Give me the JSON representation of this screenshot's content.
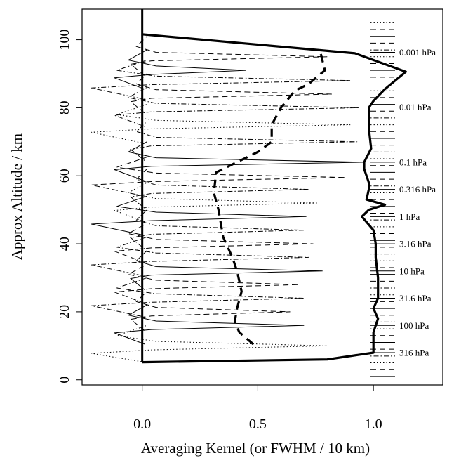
{
  "chart_data": {
    "type": "line",
    "title": "",
    "xlabel": "Averaging Kernel (or FWHM / 10 km)",
    "ylabel": "Approx Altitude / km",
    "xlim": [
      -0.26,
      1.3
    ],
    "ylim": [
      -1.5,
      109
    ],
    "xticks": [
      0.0,
      0.5,
      1.0
    ],
    "xtick_labels": [
      "0.0",
      "0.5",
      "1.0"
    ],
    "yticks": [
      0,
      20,
      40,
      60,
      80,
      100
    ],
    "ytick_labels": [
      "0",
      "20",
      "40",
      "60",
      "80",
      "100"
    ],
    "grid": false,
    "legend_placement": "right",
    "level_labels": [
      {
        "y": 96.3,
        "label": "0.001 hPa"
      },
      {
        "y": 80.2,
        "label": "0.01 hPa"
      },
      {
        "y": 64.0,
        "label": "0.1 hPa"
      },
      {
        "y": 56.0,
        "label": "0.316 hPa"
      },
      {
        "y": 48.0,
        "label": "1 hPa"
      },
      {
        "y": 40.0,
        "label": "3.16 hPa"
      },
      {
        "y": 32.0,
        "label": "10 hPa"
      },
      {
        "y": 24.0,
        "label": "31.6 hPa"
      },
      {
        "y": 16.0,
        "label": "100 hPa"
      },
      {
        "y": 8.0,
        "label": "316 hPa"
      }
    ],
    "series": [
      {
        "style": "solid-thick",
        "points": [
          [
            0.0,
            5.2
          ],
          [
            0.8,
            6.0
          ],
          [
            1.0,
            8.0
          ],
          [
            1.0,
            10.0
          ],
          [
            1.0,
            14.0
          ],
          [
            1.02,
            18.0
          ],
          [
            1.0,
            21.0
          ],
          [
            1.02,
            24.0
          ],
          [
            1.02,
            30.0
          ],
          [
            1.01,
            36.0
          ],
          [
            1.01,
            40.0
          ],
          [
            1.0,
            44.0
          ],
          [
            0.95,
            48.0
          ],
          [
            0.98,
            50.0
          ],
          [
            1.05,
            51.5
          ],
          [
            0.97,
            53.0
          ],
          [
            0.98,
            56.0
          ],
          [
            0.98,
            58.0
          ],
          [
            0.96,
            62.0
          ],
          [
            0.96,
            64.0
          ],
          [
            0.99,
            68.0
          ],
          [
            0.98,
            74.0
          ],
          [
            0.98,
            80.0
          ],
          [
            1.0,
            82.0
          ],
          [
            1.05,
            85.5
          ],
          [
            1.14,
            90.6
          ],
          [
            0.92,
            96.0
          ],
          [
            0.0,
            101.6
          ]
        ]
      },
      {
        "style": "dashed-thick",
        "points": [
          [
            0.48,
            10.5
          ],
          [
            0.42,
            14.0
          ],
          [
            0.4,
            17.0
          ],
          [
            0.41,
            21.0
          ],
          [
            0.43,
            26.0
          ],
          [
            0.41,
            32.0
          ],
          [
            0.39,
            36.0
          ],
          [
            0.35,
            42.0
          ],
          [
            0.33,
            50.0
          ],
          [
            0.31,
            55.0
          ],
          [
            0.32,
            61.0
          ],
          [
            0.5,
            67.0
          ],
          [
            0.56,
            70.0
          ],
          [
            0.56,
            75.0
          ],
          [
            0.6,
            80.0
          ],
          [
            0.66,
            85.0
          ],
          [
            0.72,
            87.0
          ],
          [
            0.79,
            91.0
          ],
          [
            0.77,
            96.5
          ]
        ]
      }
    ],
    "kernel_rows": [
      {
        "peak_y": 10.0,
        "peak_x": 0.8,
        "style": "dotted"
      },
      {
        "peak_y": 16.0,
        "peak_x": 0.7,
        "style": "solid"
      },
      {
        "peak_y": 20.0,
        "peak_x": 0.64,
        "style": "dashed"
      },
      {
        "peak_y": 24.0,
        "peak_x": 0.7,
        "style": "dotdash"
      },
      {
        "peak_y": 28.0,
        "peak_x": 0.68,
        "style": "dashed"
      },
      {
        "peak_y": 32.0,
        "peak_x": 0.78,
        "style": "solid"
      },
      {
        "peak_y": 36.0,
        "peak_x": 0.72,
        "style": "dotdash"
      },
      {
        "peak_y": 40.0,
        "peak_x": 0.74,
        "style": "dashed"
      },
      {
        "peak_y": 44.0,
        "peak_x": 0.7,
        "style": "dotdash"
      },
      {
        "peak_y": 48.0,
        "peak_x": 0.71,
        "style": "solid"
      },
      {
        "peak_y": 52.0,
        "peak_x": 0.76,
        "style": "dotted"
      },
      {
        "peak_y": 56.0,
        "peak_x": 0.72,
        "style": "dotdash"
      },
      {
        "peak_y": 59.5,
        "peak_x": 0.88,
        "style": "dashed"
      },
      {
        "peak_y": 64.0,
        "peak_x": 0.96,
        "style": "solid"
      },
      {
        "peak_y": 70.0,
        "peak_x": 0.93,
        "style": "dotdash"
      },
      {
        "peak_y": 75.0,
        "peak_x": 0.9,
        "style": "dotted"
      },
      {
        "peak_y": 80.0,
        "peak_x": 0.94,
        "style": "dotdash"
      },
      {
        "peak_y": 84.0,
        "peak_x": 0.82,
        "style": "dashed"
      },
      {
        "peak_y": 88.0,
        "peak_x": 0.9,
        "style": "dotdash"
      },
      {
        "peak_y": 91.0,
        "peak_x": 0.45,
        "style": "solid"
      },
      {
        "peak_y": 95.0,
        "peak_x": 0.8,
        "style": "dashed"
      }
    ],
    "zero_line_x": 0.0
  }
}
